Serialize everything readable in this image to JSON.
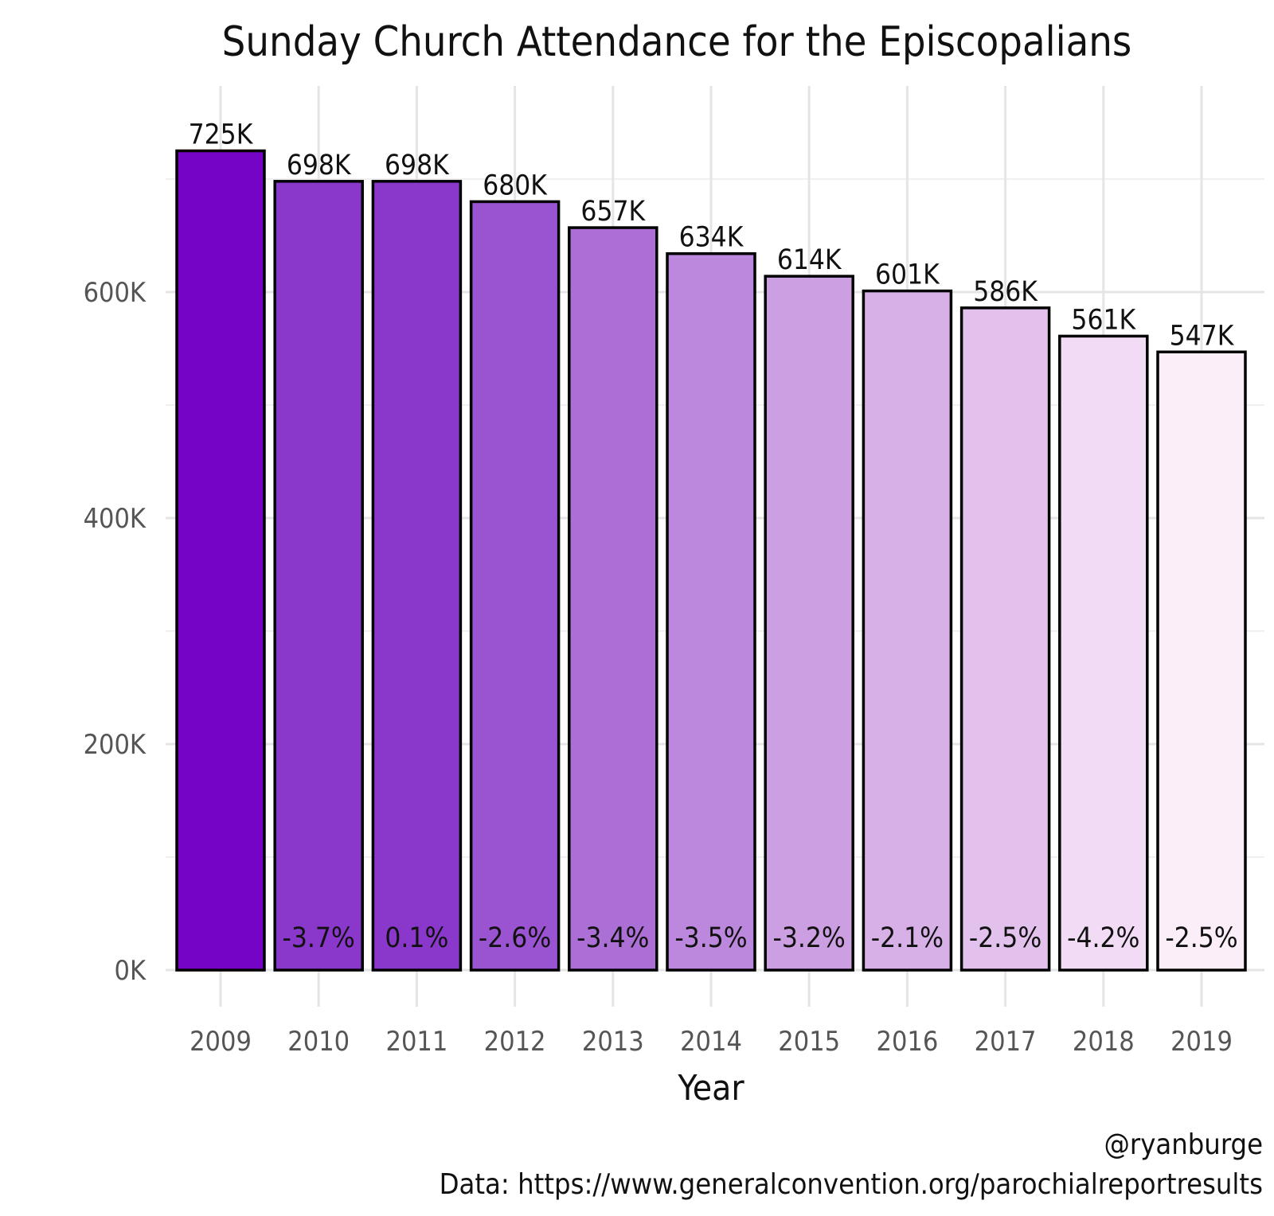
{
  "chart_data": {
    "type": "bar",
    "title": "Sunday Church Attendance for the Episcopalians",
    "xlabel": "Year",
    "ylabel": "",
    "categories": [
      "2009",
      "2010",
      "2011",
      "2012",
      "2013",
      "2014",
      "2015",
      "2016",
      "2017",
      "2018",
      "2019"
    ],
    "values": [
      725000,
      698000,
      698000,
      680000,
      657000,
      634000,
      614000,
      601000,
      586000,
      561000,
      547000
    ],
    "value_labels": [
      "725K",
      "698K",
      "698K",
      "680K",
      "657K",
      "634K",
      "614K",
      "601K",
      "586K",
      "561K",
      "547K"
    ],
    "change_labels": [
      "",
      "-3.7%",
      "0.1%",
      "-2.6%",
      "-3.4%",
      "-3.5%",
      "-3.2%",
      "-2.1%",
      "-2.5%",
      "-4.2%",
      "-2.5%"
    ],
    "bar_colors": [
      "#7504c6",
      "#8a38cb",
      "#8a38cb",
      "#9b54d1",
      "#ab6fd6",
      "#bc88dd",
      "#cc9fe2",
      "#d7b0e7",
      "#e2c2ed",
      "#f2dcf5",
      "#fbeef8"
    ],
    "ylim": [
      0,
      800000
    ],
    "yticks": [
      0,
      200000,
      400000,
      600000
    ],
    "ytick_labels": [
      "0K",
      "200K",
      "400K",
      "600K"
    ],
    "grid": true,
    "legend": "none",
    "captions": [
      "@ryanburge",
      "Data: https://www.generalconvention.org/parochialreportresults"
    ]
  }
}
